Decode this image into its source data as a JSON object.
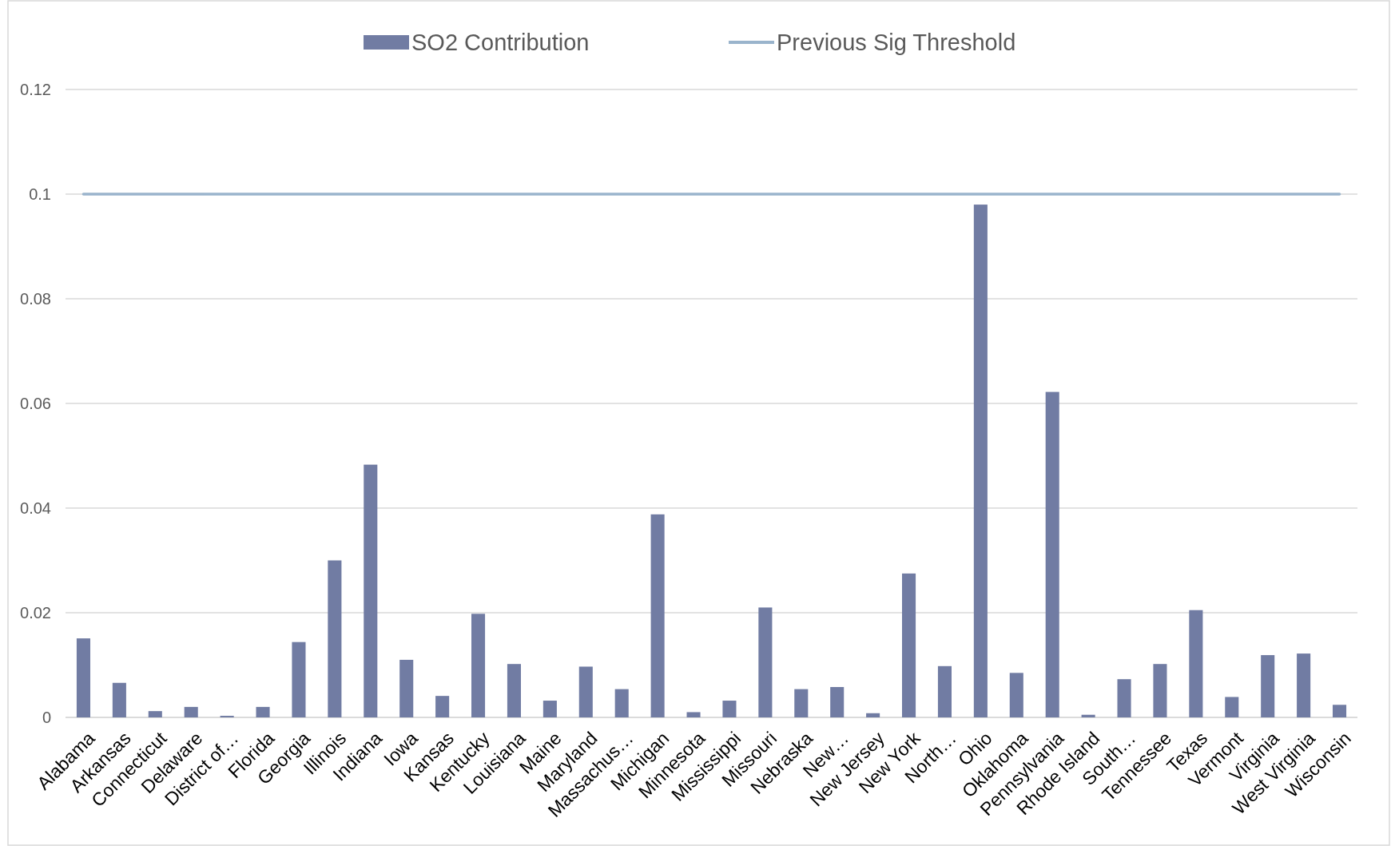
{
  "chart_data": {
    "type": "bar",
    "categories": [
      "Alabama",
      "Arkansas",
      "Connecticut",
      "Delaware",
      "District of…",
      "Florida",
      "Georgia",
      "Illinois",
      "Indiana",
      "Iowa",
      "Kansas",
      "Kentucky",
      "Louisiana",
      "Maine",
      "Maryland",
      "Massachus…",
      "Michigan",
      "Minnesota",
      "Mississippi",
      "Missouri",
      "Nebraska",
      "New…",
      "New Jersey",
      "New York",
      "North…",
      "Ohio",
      "Oklahoma",
      "Pennsylvania",
      "Rhode Island",
      "South…",
      "Tennessee",
      "Texas",
      "Vermont",
      "Virginia",
      "West Virginia",
      "Wisconsin"
    ],
    "series": [
      {
        "name": "SO2 Contribution",
        "color": "#717ca3",
        "values": [
          0.0151,
          0.0066,
          0.0012,
          0.002,
          0.0003,
          0.002,
          0.0144,
          0.03,
          0.0483,
          0.011,
          0.0041,
          0.0198,
          0.0102,
          0.0032,
          0.0097,
          0.0054,
          0.0388,
          0.001,
          0.0032,
          0.021,
          0.0054,
          0.0058,
          0.0008,
          0.0275,
          0.0098,
          0.098,
          0.0085,
          0.0622,
          0.0005,
          0.0073,
          0.0102,
          0.0205,
          0.0039,
          0.0119,
          0.0122,
          0.0024
        ]
      },
      {
        "name": "Previous Sig Threshold",
        "type": "line",
        "color": "#9ab4cc",
        "values": [
          0.1,
          0.1,
          0.1,
          0.1,
          0.1,
          0.1,
          0.1,
          0.1,
          0.1,
          0.1,
          0.1,
          0.1,
          0.1,
          0.1,
          0.1,
          0.1,
          0.1,
          0.1,
          0.1,
          0.1,
          0.1,
          0.1,
          0.1,
          0.1,
          0.1,
          0.1,
          0.1,
          0.1,
          0.1,
          0.1,
          0.1,
          0.1,
          0.1,
          0.1,
          0.1,
          0.1
        ]
      }
    ],
    "ylim": [
      0,
      0.12
    ],
    "yticks": [
      0,
      0.02,
      0.04,
      0.06,
      0.08,
      0.1,
      0.12
    ],
    "grid": "y",
    "legend": "top"
  }
}
